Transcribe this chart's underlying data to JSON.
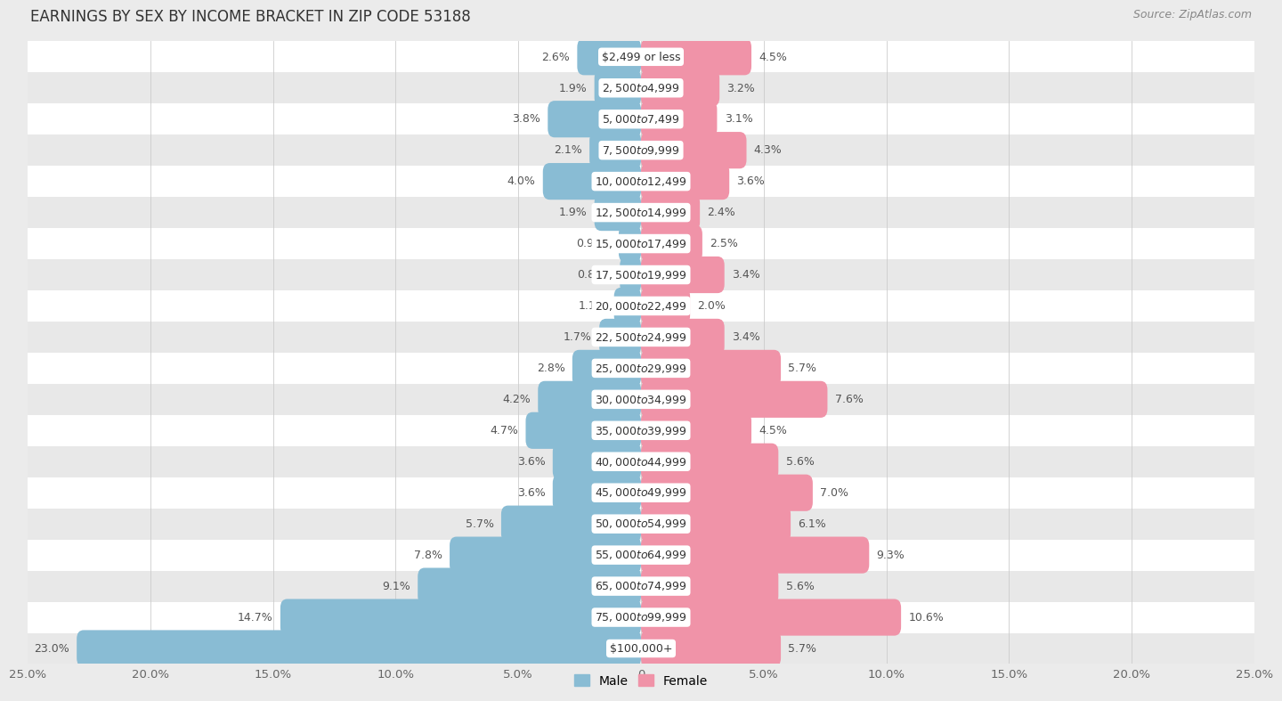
{
  "title": "EARNINGS BY SEX BY INCOME BRACKET IN ZIP CODE 53188",
  "source": "Source: ZipAtlas.com",
  "categories": [
    "$2,499 or less",
    "$2,500 to $4,999",
    "$5,000 to $7,499",
    "$7,500 to $9,999",
    "$10,000 to $12,499",
    "$12,500 to $14,999",
    "$15,000 to $17,499",
    "$17,500 to $19,999",
    "$20,000 to $22,499",
    "$22,500 to $24,999",
    "$25,000 to $29,999",
    "$30,000 to $34,999",
    "$35,000 to $39,999",
    "$40,000 to $44,999",
    "$45,000 to $49,999",
    "$50,000 to $54,999",
    "$55,000 to $64,999",
    "$65,000 to $74,999",
    "$75,000 to $99,999",
    "$100,000+"
  ],
  "male_values": [
    2.6,
    1.9,
    3.8,
    2.1,
    4.0,
    1.9,
    0.91,
    0.86,
    1.1,
    1.7,
    2.8,
    4.2,
    4.7,
    3.6,
    3.6,
    5.7,
    7.8,
    9.1,
    14.7,
    23.0
  ],
  "female_values": [
    4.5,
    3.2,
    3.1,
    4.3,
    3.6,
    2.4,
    2.5,
    3.4,
    2.0,
    3.4,
    5.7,
    7.6,
    4.5,
    5.6,
    7.0,
    6.1,
    9.3,
    5.6,
    10.6,
    5.7
  ],
  "male_color": "#89bcd4",
  "female_color": "#f093a8",
  "bg_color": "#ebebeb",
  "row_color_even": "#ffffff",
  "row_color_odd": "#e8e8e8",
  "label_bg_color": "#ffffff",
  "xlim": 25.0,
  "bar_height": 0.62,
  "title_fontsize": 12,
  "tick_fontsize": 9.5,
  "cat_fontsize": 9,
  "val_fontsize": 9,
  "source_fontsize": 9,
  "xticks": [
    -25,
    -20,
    -15,
    -10,
    -5,
    0,
    5,
    10,
    15,
    20,
    25
  ],
  "xtick_labels": [
    "25.0%",
    "20.0%",
    "15.0%",
    "10.0%",
    "5.0%",
    "0",
    "5.0%",
    "10.0%",
    "15.0%",
    "20.0%",
    "25.0%"
  ]
}
